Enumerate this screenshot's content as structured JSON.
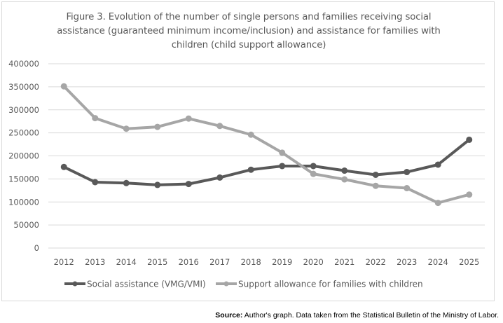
{
  "chart_data": {
    "type": "line",
    "title": "Figure 3. Evolution of the number of single persons and families receiving social assistance (guaranteed minimum income/inclusion) and assistance for families with children (child support allowance)",
    "title_lines": [
      "Figure 3. Evolution of the number of single persons and families receiving social",
      "assistance (guaranteed minimum income/inclusion) and assistance for families with",
      "children (child support allowance)"
    ],
    "xlabel": "",
    "ylabel": "",
    "x": [
      "2012",
      "2013",
      "2014",
      "2015",
      "2016",
      "2017",
      "2018",
      "2019",
      "2020",
      "2021",
      "2022",
      "2023",
      "2024",
      "2025"
    ],
    "ylim": [
      0,
      400000
    ],
    "yticks": [
      "0",
      "50000",
      "100000",
      "150000",
      "200000",
      "250000",
      "300000",
      "350000",
      "400000"
    ],
    "ytick_values": [
      0,
      50000,
      100000,
      150000,
      200000,
      250000,
      300000,
      350000,
      400000
    ],
    "grid": "horizontal",
    "legend_position": "bottom",
    "series": [
      {
        "name": "Social assistance (VMG/VMI)",
        "color": "#595959",
        "values": [
          176000,
          143000,
          141000,
          137000,
          139000,
          153000,
          170000,
          178000,
          178000,
          168000,
          159000,
          165000,
          181000,
          235000
        ]
      },
      {
        "name": "Support allowance for families with children",
        "color": "#a6a6a6",
        "values": [
          351000,
          282000,
          259000,
          263000,
          281000,
          265000,
          246000,
          207000,
          161000,
          149000,
          135000,
          130000,
          98000,
          116000
        ]
      }
    ]
  },
  "source": {
    "label": "Source:",
    "text": " Author's graph. Data taken from the Statistical Bulletin of the Ministry of Labor."
  }
}
